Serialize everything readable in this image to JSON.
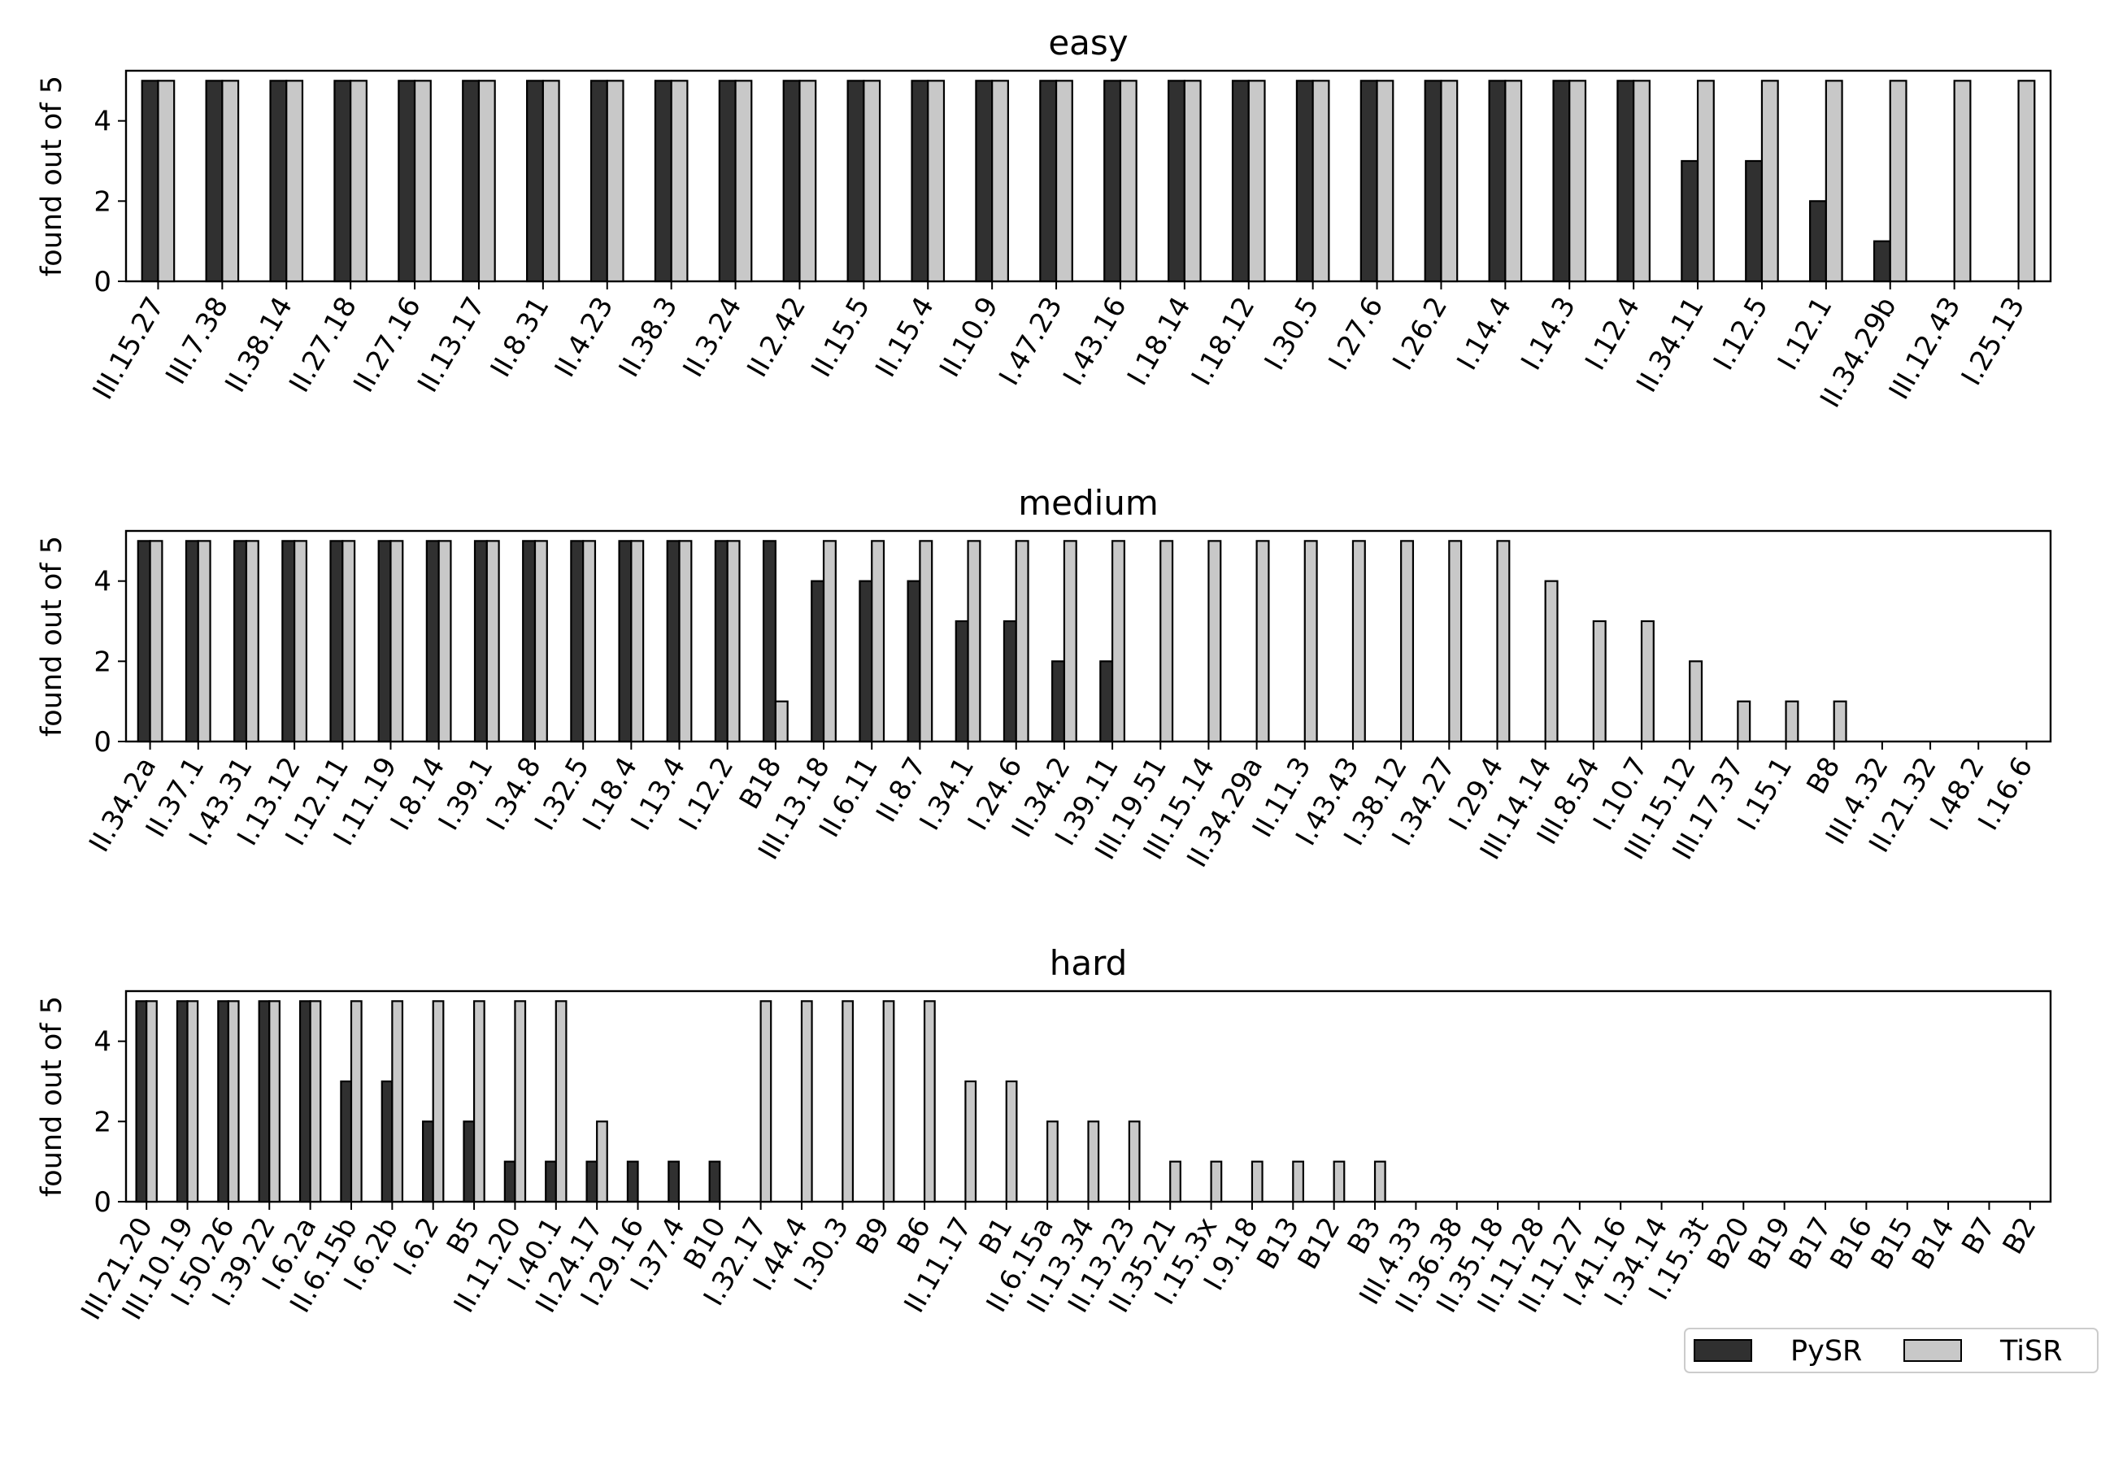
{
  "colors": {
    "pysr": "#303030",
    "tisr": "#c8c8c8",
    "edge": "#000000"
  },
  "legend": {
    "placement": "lower-right",
    "entries": [
      "PySR",
      "TiSR"
    ]
  },
  "chart_data": [
    {
      "type": "bar",
      "title": "easy",
      "ylabel": "found out of 5",
      "ylim": [
        0,
        5.25
      ],
      "yticks": [
        0,
        2,
        4
      ],
      "categories": [
        "III.15.27",
        "III.7.38",
        "II.38.14",
        "II.27.18",
        "II.27.16",
        "II.13.17",
        "II.8.31",
        "II.4.23",
        "II.38.3",
        "II.3.24",
        "II.2.42",
        "II.15.5",
        "II.15.4",
        "II.10.9",
        "I.47.23",
        "I.43.16",
        "I.18.14",
        "I.18.12",
        "I.30.5",
        "I.27.6",
        "I.26.2",
        "I.14.4",
        "I.14.3",
        "I.12.4",
        "II.34.11",
        "I.12.5",
        "I.12.1",
        "II.34.29b",
        "III.12.43",
        "I.25.13"
      ],
      "series": [
        {
          "name": "PySR",
          "values": [
            5,
            5,
            5,
            5,
            5,
            5,
            5,
            5,
            5,
            5,
            5,
            5,
            5,
            5,
            5,
            5,
            5,
            5,
            5,
            5,
            5,
            5,
            5,
            5,
            3,
            3,
            2,
            1,
            0,
            0
          ]
        },
        {
          "name": "TiSR",
          "values": [
            5,
            5,
            5,
            5,
            5,
            5,
            5,
            5,
            5,
            5,
            5,
            5,
            5,
            5,
            5,
            5,
            5,
            5,
            5,
            5,
            5,
            5,
            5,
            5,
            5,
            5,
            5,
            5,
            5,
            5
          ]
        }
      ]
    },
    {
      "type": "bar",
      "title": "medium",
      "ylabel": "found out of 5",
      "ylim": [
        0,
        5.25
      ],
      "yticks": [
        0,
        2,
        4
      ],
      "categories": [
        "II.34.2a",
        "II.37.1",
        "I.43.31",
        "I.13.12",
        "I.12.11",
        "I.11.19",
        "I.8.14",
        "I.39.1",
        "I.34.8",
        "I.32.5",
        "I.18.4",
        "I.13.4",
        "I.12.2",
        "B18",
        "III.13.18",
        "II.6.11",
        "II.8.7",
        "I.34.1",
        "I.24.6",
        "II.34.2",
        "I.39.11",
        "III.19.51",
        "III.15.14",
        "II.34.29a",
        "II.11.3",
        "I.43.43",
        "I.38.12",
        "I.34.27",
        "I.29.4",
        "III.14.14",
        "III.8.54",
        "I.10.7",
        "III.15.12",
        "III.17.37",
        "I.15.1",
        "B8",
        "III.4.32",
        "II.21.32",
        "I.48.2",
        "I.16.6"
      ],
      "series": [
        {
          "name": "PySR",
          "values": [
            5,
            5,
            5,
            5,
            5,
            5,
            5,
            5,
            5,
            5,
            5,
            5,
            5,
            5,
            4,
            4,
            4,
            3,
            3,
            2,
            2,
            0,
            0,
            0,
            0,
            0,
            0,
            0,
            0,
            0,
            0,
            0,
            0,
            0,
            0,
            0,
            0,
            0,
            0,
            0
          ]
        },
        {
          "name": "TiSR",
          "values": [
            5,
            5,
            5,
            5,
            5,
            5,
            5,
            5,
            5,
            5,
            5,
            5,
            5,
            1,
            5,
            5,
            5,
            5,
            5,
            5,
            5,
            5,
            5,
            5,
            5,
            5,
            5,
            5,
            5,
            4,
            3,
            3,
            2,
            1,
            1,
            1,
            0,
            0,
            0,
            0
          ]
        }
      ]
    },
    {
      "type": "bar",
      "title": "hard",
      "ylabel": "found out of 5",
      "ylim": [
        0,
        5.25
      ],
      "yticks": [
        0,
        2,
        4
      ],
      "categories": [
        "III.21.20",
        "III.10.19",
        "I.50.26",
        "I.39.22",
        "I.6.2a",
        "II.6.15b",
        "I.6.2b",
        "I.6.2",
        "B5",
        "II.11.20",
        "I.40.1",
        "II.24.17",
        "I.29.16",
        "I.37.4",
        "B10",
        "I.32.17",
        "I.44.4",
        "I.30.3",
        "B9",
        "B6",
        "II.11.17",
        "B1",
        "II.6.15a",
        "II.13.34",
        "II.13.23",
        "II.35.21",
        "I.15.3x",
        "I.9.18",
        "B13",
        "B12",
        "B3",
        "III.4.33",
        "II.36.38",
        "II.35.18",
        "II.11.28",
        "II.11.27",
        "I.41.16",
        "I.34.14",
        "I.15.3t",
        "B20",
        "B19",
        "B17",
        "B16",
        "B15",
        "B14",
        "B7",
        "B2"
      ],
      "series": [
        {
          "name": "PySR",
          "values": [
            5,
            5,
            5,
            5,
            5,
            3,
            3,
            2,
            2,
            1,
            1,
            1,
            1,
            1,
            1,
            0,
            0,
            0,
            0,
            0,
            0,
            0,
            0,
            0,
            0,
            0,
            0,
            0,
            0,
            0,
            0,
            0,
            0,
            0,
            0,
            0,
            0,
            0,
            0,
            0,
            0,
            0,
            0,
            0,
            0,
            0,
            0
          ]
        },
        {
          "name": "TiSR",
          "values": [
            5,
            5,
            5,
            5,
            5,
            5,
            5,
            5,
            5,
            5,
            5,
            2,
            0,
            0,
            0,
            5,
            5,
            5,
            5,
            5,
            3,
            3,
            2,
            2,
            2,
            1,
            1,
            1,
            1,
            1,
            1,
            0,
            0,
            0,
            0,
            0,
            0,
            0,
            0,
            0,
            0,
            0,
            0,
            0,
            0,
            0,
            0
          ]
        }
      ]
    }
  ]
}
